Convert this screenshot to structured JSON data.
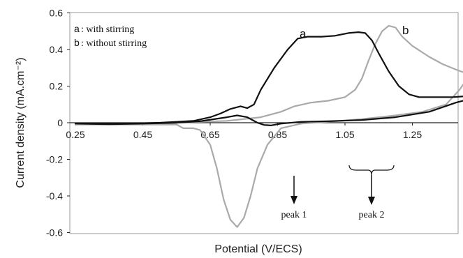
{
  "chart_data": {
    "type": "line",
    "xlabel": "Potential (V/ECS)",
    "ylabel": "Current density (mA.cm⁻²)",
    "xlim": [
      0.25,
      1.42
    ],
    "ylim": [
      -0.6,
      0.6
    ],
    "x_ticks": [
      "0.25",
      "0.45",
      "0.65",
      "0.85",
      "1.05",
      "1.25"
    ],
    "y_ticks": [
      "0.6",
      "0.4",
      "0.2",
      "0",
      "-0.2",
      "-0.4",
      "-0.6"
    ],
    "legend": [
      {
        "key": "a",
        "text": ": with stirring"
      },
      {
        "key": "b",
        "text": ": without stirring"
      }
    ],
    "series": [
      {
        "name": "a",
        "color": "#111111",
        "points": [
          [
            0.25,
            -0.005
          ],
          [
            0.4,
            -0.005
          ],
          [
            0.5,
            0.0
          ],
          [
            0.6,
            0.01
          ],
          [
            0.65,
            0.03
          ],
          [
            0.68,
            0.05
          ],
          [
            0.71,
            0.075
          ],
          [
            0.74,
            0.09
          ],
          [
            0.76,
            0.08
          ],
          [
            0.78,
            0.1
          ],
          [
            0.8,
            0.18
          ],
          [
            0.84,
            0.3
          ],
          [
            0.88,
            0.4
          ],
          [
            0.91,
            0.46
          ],
          [
            0.94,
            0.47
          ],
          [
            0.98,
            0.47
          ],
          [
            1.02,
            0.475
          ],
          [
            1.06,
            0.49
          ],
          [
            1.09,
            0.495
          ],
          [
            1.11,
            0.49
          ],
          [
            1.13,
            0.45
          ],
          [
            1.15,
            0.38
          ],
          [
            1.18,
            0.28
          ],
          [
            1.21,
            0.2
          ],
          [
            1.24,
            0.155
          ],
          [
            1.27,
            0.14
          ],
          [
            1.33,
            0.14
          ],
          [
            1.37,
            0.14
          ],
          [
            1.41,
            0.145
          ],
          [
            1.42,
            0.13
          ],
          [
            1.38,
            0.11
          ],
          [
            1.3,
            0.06
          ],
          [
            1.2,
            0.03
          ],
          [
            1.1,
            0.015
          ],
          [
            1.0,
            0.008
          ],
          [
            0.92,
            0.005
          ],
          [
            0.86,
            -0.005
          ],
          [
            0.83,
            -0.015
          ],
          [
            0.81,
            -0.012
          ],
          [
            0.79,
            0.0
          ],
          [
            0.76,
            0.03
          ],
          [
            0.73,
            0.04
          ],
          [
            0.7,
            0.03
          ],
          [
            0.62,
            0.008
          ],
          [
            0.55,
            0.0
          ],
          [
            0.45,
            -0.005
          ],
          [
            0.35,
            -0.008
          ],
          [
            0.25,
            -0.005
          ]
        ]
      },
      {
        "name": "b",
        "color": "#aaaaaa",
        "points": [
          [
            0.25,
            -0.01
          ],
          [
            0.4,
            -0.008
          ],
          [
            0.55,
            0.0
          ],
          [
            0.7,
            0.01
          ],
          [
            0.8,
            0.03
          ],
          [
            0.86,
            0.06
          ],
          [
            0.9,
            0.09
          ],
          [
            0.95,
            0.11
          ],
          [
            1.0,
            0.12
          ],
          [
            1.05,
            0.14
          ],
          [
            1.08,
            0.18
          ],
          [
            1.1,
            0.24
          ],
          [
            1.12,
            0.34
          ],
          [
            1.14,
            0.43
          ],
          [
            1.16,
            0.5
          ],
          [
            1.18,
            0.53
          ],
          [
            1.2,
            0.52
          ],
          [
            1.22,
            0.47
          ],
          [
            1.25,
            0.42
          ],
          [
            1.3,
            0.36
          ],
          [
            1.34,
            0.32
          ],
          [
            1.38,
            0.29
          ],
          [
            1.41,
            0.27
          ],
          [
            1.42,
            0.26
          ],
          [
            1.39,
            0.18
          ],
          [
            1.35,
            0.1
          ],
          [
            1.28,
            0.06
          ],
          [
            1.2,
            0.04
          ],
          [
            1.1,
            0.02
          ],
          [
            1.0,
            0.005
          ],
          [
            0.92,
            -0.005
          ],
          [
            0.86,
            -0.03
          ],
          [
            0.82,
            -0.12
          ],
          [
            0.79,
            -0.25
          ],
          [
            0.77,
            -0.4
          ],
          [
            0.75,
            -0.52
          ],
          [
            0.73,
            -0.57
          ],
          [
            0.71,
            -0.53
          ],
          [
            0.69,
            -0.42
          ],
          [
            0.67,
            -0.25
          ],
          [
            0.65,
            -0.12
          ],
          [
            0.62,
            -0.04
          ],
          [
            0.6,
            -0.03
          ],
          [
            0.57,
            -0.03
          ],
          [
            0.55,
            -0.01
          ],
          [
            0.45,
            -0.01
          ],
          [
            0.35,
            -0.01
          ],
          [
            0.25,
            -0.01
          ]
        ]
      }
    ],
    "annotations": [
      {
        "text": "peak 1"
      },
      {
        "text": "peak 2"
      }
    ]
  }
}
